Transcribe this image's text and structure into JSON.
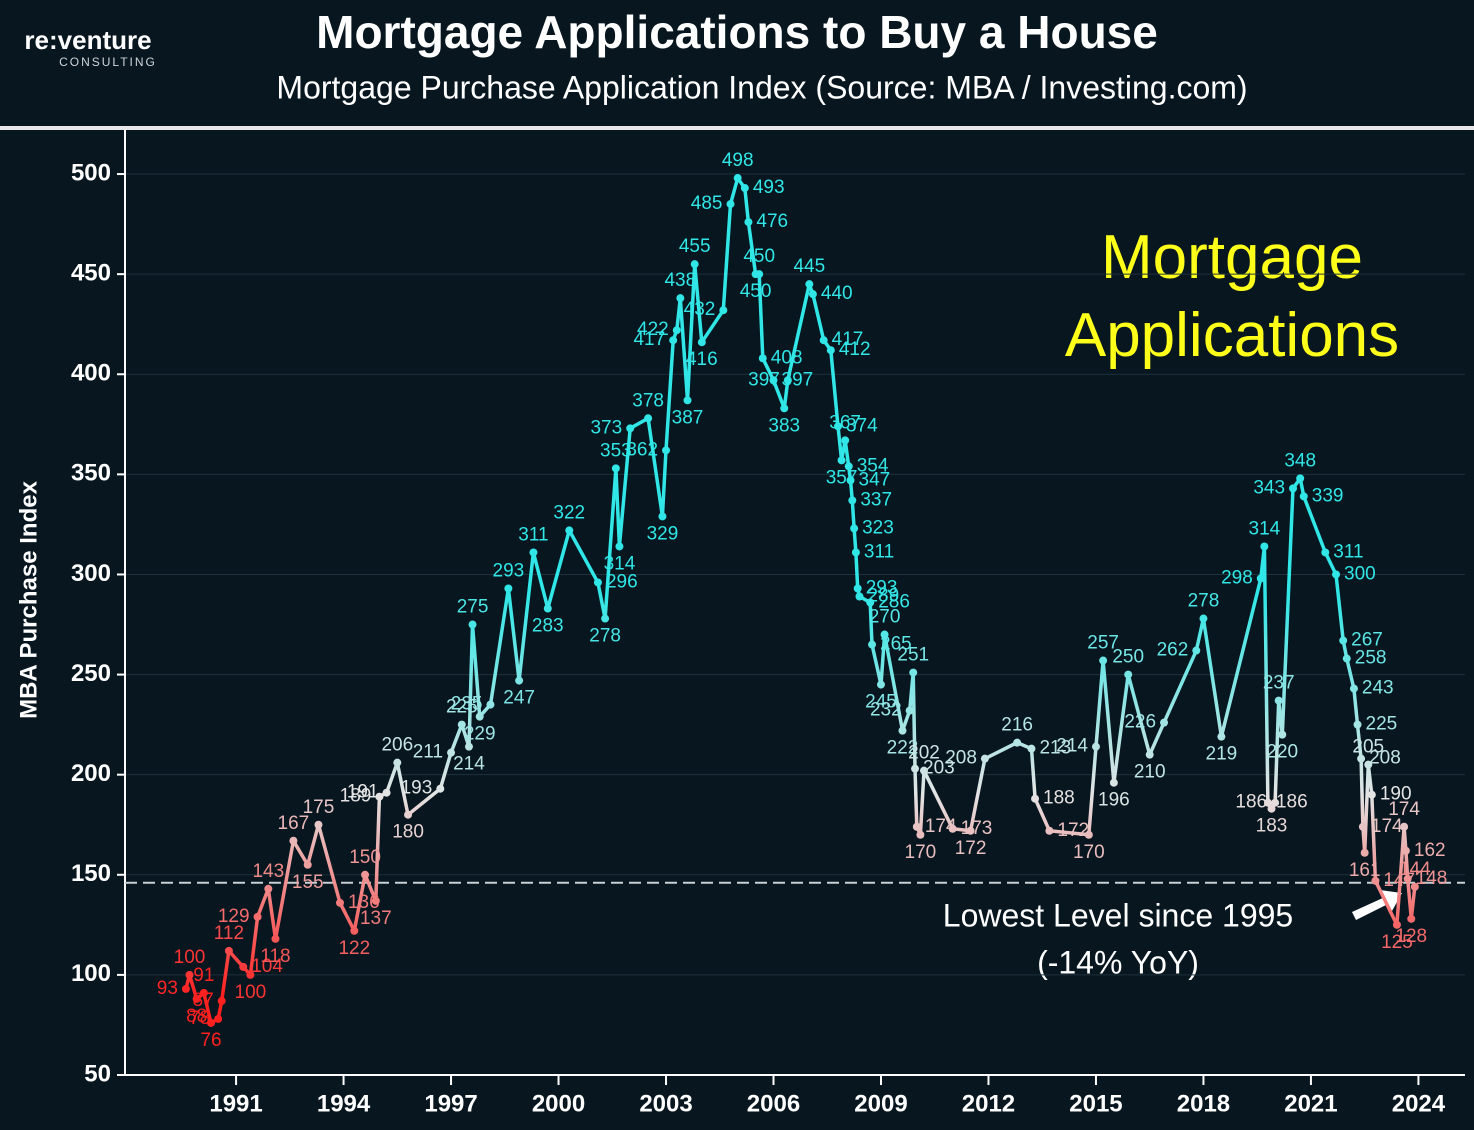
{
  "brand": {
    "name": "re:venture",
    "sub": "CONSULTING"
  },
  "chart_data": {
    "type": "line",
    "title": "Mortgage Applications to Buy a House",
    "subtitle": "Mortgage Purchase Application Index (Source: MBA / Investing.com)",
    "y_label": "MBA Purchase Index",
    "annotation": "Mortgage Applications",
    "callout": [
      "Lowest Level since 1995",
      "(-14% YoY)"
    ],
    "reference_line": 146,
    "xlim": [
      1987.9,
      2025.3
    ],
    "xticks": [
      1991,
      1994,
      1997,
      2000,
      2003,
      2006,
      2009,
      2012,
      2015,
      2018,
      2021,
      2024
    ],
    "ylim": [
      50,
      522
    ],
    "yticks": [
      50,
      100,
      150,
      200,
      250,
      300,
      350,
      400,
      450,
      500
    ],
    "grid": true,
    "color_stops": [
      {
        "value": 90,
        "color": "#ff2020"
      },
      {
        "value": 190,
        "color": "#e4e4e4"
      },
      {
        "value": 290,
        "color": "#30e6e6"
      }
    ],
    "x": [
      1989.6,
      1989.7,
      1989.9,
      1990.1,
      1990.3,
      1990.5,
      1990.6,
      1990.8,
      1991.2,
      1991.4,
      1991.6,
      1991.9,
      1992.1,
      1992.6,
      1993.0,
      1993.3,
      1993.9,
      1994.3,
      1994.6,
      1994.9,
      1995.0,
      1995.2,
      1995.5,
      1995.8,
      1996.7,
      1997.0,
      1997.3,
      1997.5,
      1997.6,
      1997.8,
      1998.1,
      1998.6,
      1998.9,
      1999.3,
      1999.7,
      2000.3,
      2001.1,
      2001.3,
      2001.6,
      2001.7,
      2002.0,
      2002.5,
      2002.9,
      2003.0,
      2003.2,
      2003.3,
      2003.4,
      2003.6,
      2003.8,
      2004.0,
      2004.6,
      2004.8,
      2005.0,
      2005.2,
      2005.3,
      2005.5,
      2005.6,
      2005.7,
      2006.0,
      2006.3,
      2006.4,
      2007.0,
      2007.1,
      2007.4,
      2007.6,
      2007.8,
      2007.9,
      2008.0,
      2008.1,
      2008.15,
      2008.2,
      2008.25,
      2008.3,
      2008.35,
      2008.4,
      2008.7,
      2008.75,
      2009.0,
      2009.1,
      2009.6,
      2009.8,
      2009.9,
      2009.95,
      2010.0,
      2010.1,
      2010.2,
      2011.0,
      2011.5,
      2011.9,
      2012.8,
      2013.2,
      2013.3,
      2013.7,
      2014.8,
      2015.0,
      2015.2,
      2015.5,
      2015.9,
      2016.5,
      2016.9,
      2017.8,
      2018.0,
      2018.5,
      2019.6,
      2019.7,
      2019.8,
      2019.9,
      2020.0,
      2020.1,
      2020.2,
      2020.5,
      2020.7,
      2020.8,
      2021.4,
      2021.7,
      2021.9,
      2022.0,
      2022.2,
      2022.3,
      2022.4,
      2022.45,
      2022.5,
      2022.6,
      2022.7,
      2022.8,
      2023.4,
      2023.6,
      2023.65,
      2023.7,
      2023.8,
      2023.9
    ],
    "values": [
      93,
      100,
      88,
      91,
      76,
      78,
      87,
      112,
      104,
      100,
      129,
      143,
      118,
      167,
      155,
      175,
      136,
      122,
      150,
      137,
      189,
      191,
      206,
      180,
      193,
      211,
      225,
      214,
      275,
      229,
      235,
      293,
      247,
      311,
      283,
      322,
      296,
      278,
      353,
      314,
      373,
      378,
      329,
      362,
      417,
      422,
      438,
      387,
      455,
      416,
      432,
      485,
      498,
      493,
      476,
      450,
      450,
      408,
      397,
      383,
      397,
      445,
      440,
      417,
      412,
      374,
      357,
      367,
      354,
      347,
      337,
      323,
      311,
      293,
      289,
      286,
      265,
      245,
      270,
      222,
      232,
      251,
      203,
      174,
      170,
      202,
      173,
      172,
      208,
      216,
      213,
      188,
      172,
      170,
      214,
      257,
      196,
      250,
      210,
      226,
      262,
      278,
      219,
      298,
      314,
      186,
      183,
      186,
      237,
      220,
      343,
      348,
      339,
      311,
      300,
      267,
      258,
      243,
      225,
      208,
      174,
      161,
      205,
      190,
      147,
      125,
      174,
      162,
      148,
      128,
      144
    ]
  }
}
